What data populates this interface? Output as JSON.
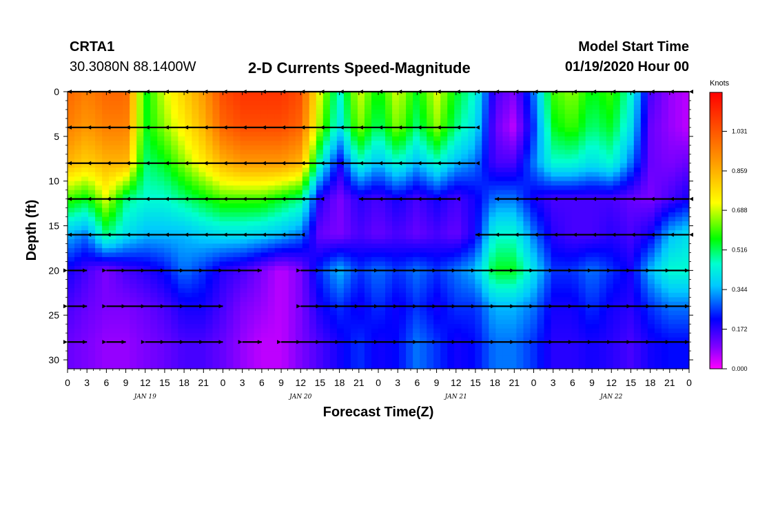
{
  "header": {
    "station": "CRTA1",
    "coords": "30.3080N 88.1400W",
    "title": "2-D Currents Speed-Magnitude",
    "start_label": "Model Start Time",
    "start_value": "01/19/2020 Hour 00"
  },
  "chart_data": {
    "type": "heatmap",
    "title": "2-D Currents Speed-Magnitude",
    "xlabel": "Forecast Time(Z)",
    "ylabel": "Depth (ft)",
    "x_ticks": [
      "0",
      "3",
      "6",
      "9",
      "12",
      "15",
      "18",
      "21",
      "0",
      "3",
      "6",
      "9",
      "12",
      "15",
      "18",
      "21",
      "0",
      "3",
      "6",
      "9",
      "12",
      "15",
      "18",
      "21",
      "0",
      "3",
      "6",
      "9",
      "12",
      "15",
      "18",
      "21",
      "0"
    ],
    "day_labels": [
      "JAN 19",
      "JAN 20",
      "JAN 21",
      "JAN 22"
    ],
    "y_ticks": [
      "0",
      "5",
      "10",
      "15",
      "20",
      "25",
      "30"
    ],
    "ylim": [
      0,
      31
    ],
    "xlim_hours": [
      0,
      96
    ],
    "depths": [
      0,
      4,
      8,
      12,
      16,
      20,
      24,
      28
    ],
    "colorbar": {
      "unit": "Knots",
      "ticks": [
        "1.031",
        "0.859",
        "0.688",
        "0.516",
        "0.344",
        "0.172",
        "0.000"
      ],
      "range": [
        0,
        1.2
      ]
    },
    "speed_grid": {
      "hours": [
        0,
        3,
        6,
        9,
        12,
        15,
        18,
        21,
        24,
        27,
        30,
        33,
        36,
        39,
        42,
        45,
        48,
        51,
        54,
        57,
        60,
        63,
        66,
        69,
        72,
        75,
        78,
        81,
        84,
        87,
        90,
        93,
        96
      ],
      "rows": [
        {
          "depth": 0,
          "values": [
            1.0,
            0.95,
            1.0,
            1.0,
            0.55,
            0.7,
            0.8,
            0.9,
            1.05,
            1.1,
            1.1,
            1.1,
            1.05,
            0.7,
            0.45,
            0.7,
            0.55,
            0.7,
            0.55,
            0.7,
            0.55,
            0.45,
            0.15,
            0.1,
            0.3,
            0.6,
            0.65,
            0.55,
            0.6,
            0.45,
            0.15,
            0.08,
            0.05
          ]
        },
        {
          "depth": 4,
          "values": [
            0.95,
            0.9,
            0.95,
            0.95,
            0.55,
            0.65,
            0.75,
            0.85,
            1.0,
            1.05,
            1.05,
            1.05,
            1.0,
            0.65,
            0.4,
            0.65,
            0.5,
            0.65,
            0.5,
            0.65,
            0.5,
            0.4,
            0.12,
            0.05,
            0.25,
            0.55,
            0.6,
            0.5,
            0.55,
            0.4,
            0.12,
            0.08,
            0.05
          ]
        },
        {
          "depth": 8,
          "values": [
            0.85,
            0.8,
            0.85,
            0.85,
            0.5,
            0.55,
            0.65,
            0.75,
            0.85,
            0.9,
            0.9,
            0.9,
            0.85,
            0.45,
            0.2,
            0.45,
            0.35,
            0.45,
            0.35,
            0.45,
            0.35,
            0.3,
            0.15,
            0.15,
            0.3,
            0.45,
            0.45,
            0.4,
            0.45,
            0.3,
            0.12,
            0.1,
            0.12
          ]
        },
        {
          "depth": 12,
          "values": [
            0.6,
            0.55,
            0.7,
            0.5,
            0.45,
            0.45,
            0.5,
            0.55,
            0.6,
            0.6,
            0.6,
            0.55,
            0.5,
            0.18,
            0.1,
            0.18,
            0.15,
            0.2,
            0.15,
            0.2,
            0.15,
            0.2,
            0.3,
            0.3,
            0.2,
            0.15,
            0.15,
            0.15,
            0.15,
            0.12,
            0.1,
            0.15,
            0.2
          ]
        },
        {
          "depth": 16,
          "values": [
            0.35,
            0.3,
            0.5,
            0.4,
            0.35,
            0.35,
            0.35,
            0.38,
            0.4,
            0.4,
            0.38,
            0.35,
            0.3,
            0.12,
            0.1,
            0.15,
            0.12,
            0.15,
            0.12,
            0.15,
            0.12,
            0.2,
            0.45,
            0.45,
            0.3,
            0.18,
            0.15,
            0.15,
            0.18,
            0.15,
            0.2,
            0.35,
            0.4
          ]
        },
        {
          "depth": 20,
          "values": [
            0.2,
            0.15,
            0.1,
            0.15,
            0.18,
            0.22,
            0.3,
            0.25,
            0.18,
            0.15,
            0.1,
            0.05,
            0.1,
            0.25,
            0.35,
            0.25,
            0.3,
            0.25,
            0.3,
            0.25,
            0.3,
            0.35,
            0.55,
            0.55,
            0.4,
            0.25,
            0.25,
            0.3,
            0.25,
            0.2,
            0.35,
            0.45,
            0.45
          ]
        },
        {
          "depth": 24,
          "values": [
            0.15,
            0.12,
            0.1,
            0.1,
            0.12,
            0.15,
            0.2,
            0.2,
            0.15,
            0.1,
            0.08,
            0.05,
            0.1,
            0.2,
            0.25,
            0.2,
            0.25,
            0.2,
            0.25,
            0.2,
            0.25,
            0.25,
            0.35,
            0.35,
            0.3,
            0.2,
            0.2,
            0.25,
            0.2,
            0.18,
            0.25,
            0.3,
            0.3
          ]
        },
        {
          "depth": 28,
          "values": [
            0.12,
            0.1,
            0.08,
            0.08,
            0.1,
            0.12,
            0.15,
            0.15,
            0.12,
            0.08,
            0.05,
            0.05,
            0.1,
            0.15,
            0.2,
            0.25,
            0.2,
            0.22,
            0.3,
            0.25,
            0.2,
            0.22,
            0.3,
            0.3,
            0.25,
            0.18,
            0.18,
            0.2,
            0.18,
            0.15,
            0.2,
            0.22,
            0.22
          ]
        }
      ]
    },
    "vectors": [
      {
        "depth": 0,
        "spans": [
          [
            0,
            96
          ]
        ],
        "dir": "left"
      },
      {
        "depth": 4,
        "spans": [
          [
            0,
            63
          ]
        ],
        "dir": "left"
      },
      {
        "depth": 8,
        "spans": [
          [
            0,
            63
          ]
        ],
        "dir": "left"
      },
      {
        "depth": 12,
        "spans": [
          [
            0,
            39
          ],
          [
            45,
            60
          ],
          [
            66,
            96
          ]
        ],
        "dir": "left"
      },
      {
        "depth": 16,
        "spans": [
          [
            0,
            36
          ],
          [
            63,
            96
          ]
        ],
        "dir": "left"
      },
      {
        "depth": 20,
        "spans": [
          [
            0,
            3
          ],
          [
            6,
            30
          ],
          [
            36,
            96
          ]
        ],
        "dir": "right"
      },
      {
        "depth": 24,
        "spans": [
          [
            0,
            3
          ],
          [
            6,
            24
          ],
          [
            36,
            96
          ]
        ],
        "dir": "right"
      },
      {
        "depth": 28,
        "spans": [
          [
            0,
            3
          ],
          [
            6,
            9
          ],
          [
            12,
            24
          ],
          [
            27,
            30
          ],
          [
            33,
            96
          ]
        ],
        "dir": "right"
      }
    ]
  }
}
